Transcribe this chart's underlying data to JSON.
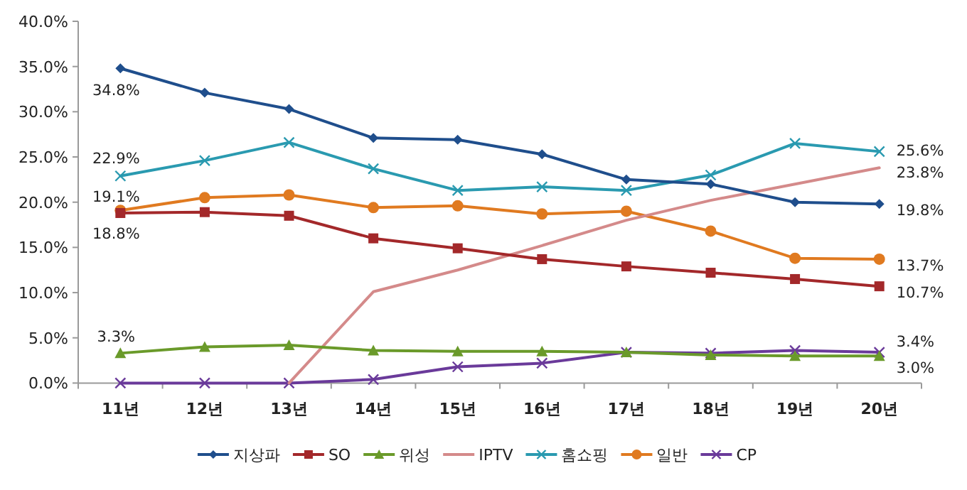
{
  "chart_data": {
    "type": "line",
    "categories": [
      "11년",
      "12년",
      "13년",
      "14년",
      "15년",
      "16년",
      "17년",
      "18년",
      "19년",
      "20년"
    ],
    "ylim": [
      0,
      40
    ],
    "yticks": [
      {
        "value": 0,
        "label": "0.0%"
      },
      {
        "value": 5,
        "label": "5.0%"
      },
      {
        "value": 10,
        "label": "10.0%"
      },
      {
        "value": 15,
        "label": "15.0%"
      },
      {
        "value": 20,
        "label": "20.0%"
      },
      {
        "value": 25,
        "label": "25.0%"
      },
      {
        "value": 30,
        "label": "30.0%"
      },
      {
        "value": 35,
        "label": "35.0%"
      },
      {
        "value": 40,
        "label": "40.0%"
      }
    ],
    "grid": false,
    "legend": "bottom",
    "series": [
      {
        "name": "지상파",
        "color": "#1f4e8c",
        "marker": "diamond",
        "values": [
          34.8,
          32.1,
          30.3,
          27.1,
          26.9,
          25.3,
          22.5,
          22.0,
          20.0,
          19.8
        ],
        "value_labels": [
          "34.8%",
          null,
          null,
          null,
          null,
          null,
          null,
          null,
          null,
          "19.8%"
        ]
      },
      {
        "name": "SO",
        "color": "#a3282a",
        "marker": "square",
        "values": [
          18.8,
          18.9,
          18.5,
          16.0,
          14.9,
          13.7,
          12.9,
          12.2,
          11.5,
          10.7
        ],
        "value_labels": [
          "18.8%",
          null,
          null,
          null,
          null,
          null,
          null,
          null,
          null,
          "10.7%"
        ]
      },
      {
        "name": "위성",
        "color": "#6a9a2a",
        "marker": "triangle",
        "values": [
          3.3,
          4.0,
          4.2,
          3.6,
          3.5,
          3.5,
          3.4,
          3.1,
          3.0,
          3.0
        ],
        "value_labels": [
          "3.3%",
          null,
          null,
          null,
          null,
          null,
          null,
          null,
          null,
          "3.0%"
        ]
      },
      {
        "name": "IPTV",
        "color": "#d48a8a",
        "marker": "none",
        "values": [
          null,
          null,
          0,
          10.1,
          12.5,
          15.2,
          18.0,
          20.2,
          22.0,
          23.8
        ],
        "value_labels": [
          null,
          null,
          null,
          null,
          null,
          null,
          null,
          null,
          null,
          "23.8%"
        ]
      },
      {
        "name": "홈쇼핑",
        "color": "#2a9ab0",
        "marker": "cross",
        "values": [
          22.9,
          24.6,
          26.6,
          23.7,
          21.3,
          21.7,
          21.3,
          23.0,
          26.5,
          25.6
        ],
        "value_labels": [
          "22.9%",
          null,
          null,
          null,
          null,
          null,
          null,
          null,
          null,
          "25.6%"
        ]
      },
      {
        "name": "일반",
        "color": "#e07a20",
        "marker": "circle",
        "values": [
          19.1,
          20.5,
          20.8,
          19.4,
          19.6,
          18.7,
          19.0,
          16.8,
          13.8,
          13.7
        ],
        "value_labels": [
          "19.1%",
          null,
          null,
          null,
          null,
          null,
          null,
          null,
          null,
          "13.7%"
        ]
      },
      {
        "name": "CP",
        "color": "#6a3a9a",
        "marker": "cross",
        "values": [
          0,
          0,
          0,
          0.4,
          1.8,
          2.2,
          3.4,
          3.3,
          3.6,
          3.4
        ],
        "value_labels": [
          null,
          null,
          null,
          null,
          null,
          null,
          null,
          null,
          null,
          "3.4%"
        ]
      }
    ]
  }
}
